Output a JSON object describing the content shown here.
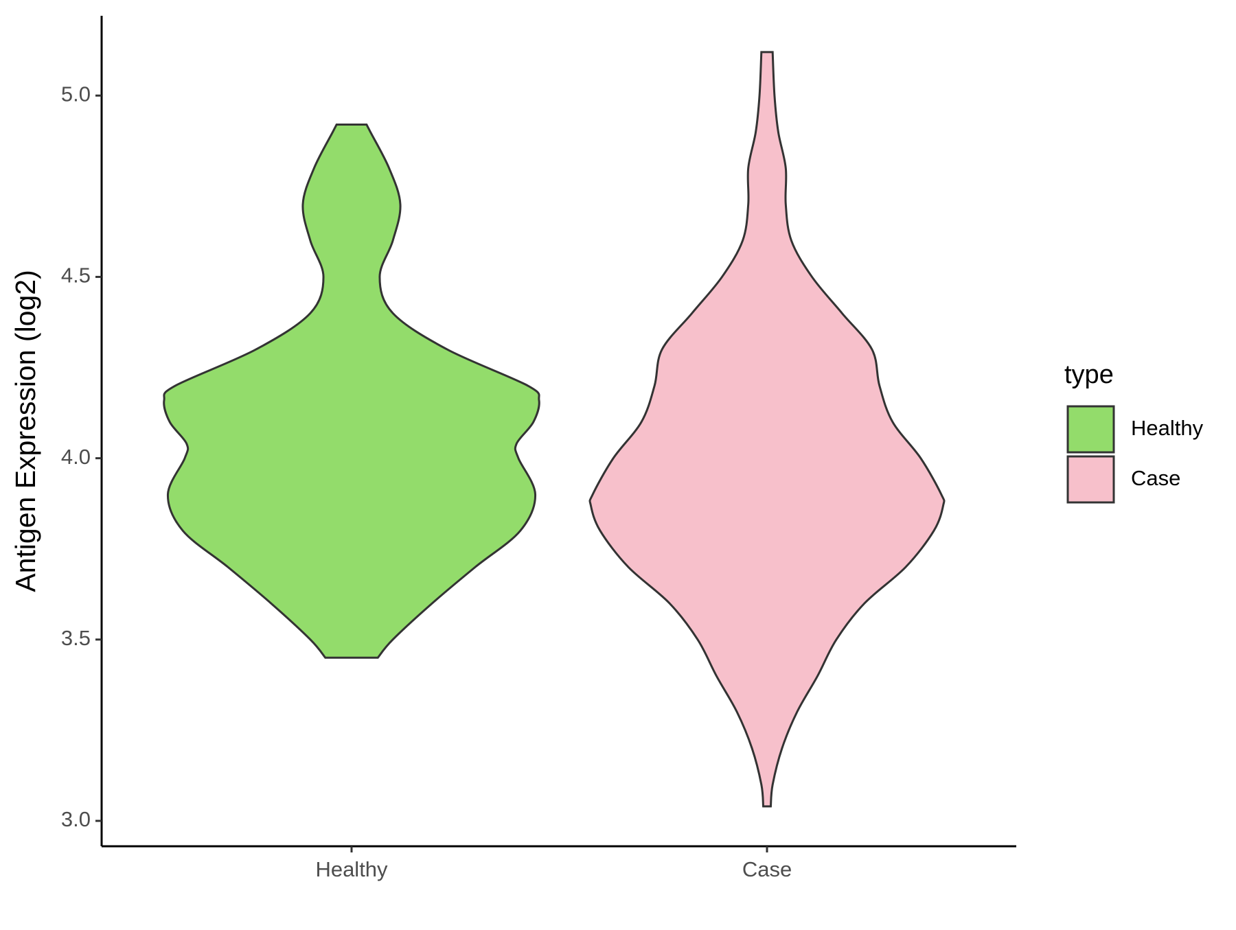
{
  "chart_data": {
    "type": "violin",
    "y_label": "Antigen Expression (log2)",
    "categories": [
      "Healthy",
      "Case"
    ],
    "legend_title": "type",
    "legend_position": "right",
    "ylim": [
      2.93,
      5.22
    ],
    "yticks": [
      {
        "value": 3,
        "label": "3.0"
      },
      3.5,
      {
        "value": 4,
        "label": "4.0"
      },
      4.5,
      {
        "value": 5,
        "label": "5.0"
      }
    ],
    "series": [
      {
        "name": "Healthy",
        "color": "#93dc6b",
        "y": [
          3.45,
          3.5,
          3.6,
          3.7,
          3.8,
          3.9,
          4.0,
          4.04,
          4.1,
          4.16,
          4.2,
          4.3,
          4.4,
          4.5,
          4.6,
          4.7,
          4.8,
          4.9,
          4.92
        ],
        "width": [
          0.14,
          0.22,
          0.43,
          0.66,
          0.9,
          0.98,
          0.89,
          0.88,
          0.97,
          1.0,
          0.94,
          0.51,
          0.22,
          0.15,
          0.22,
          0.26,
          0.2,
          0.1,
          0.08
        ]
      },
      {
        "name": "Case",
        "color": "#f7c0cb",
        "y": [
          3.04,
          3.1,
          3.2,
          3.3,
          3.4,
          3.5,
          3.6,
          3.7,
          3.8,
          3.87,
          3.9,
          4.0,
          4.1,
          4.2,
          4.3,
          4.4,
          4.5,
          4.6,
          4.7,
          4.8,
          4.9,
          5.0,
          5.12
        ],
        "width": [
          0.02,
          0.03,
          0.08,
          0.16,
          0.27,
          0.37,
          0.52,
          0.74,
          0.89,
          0.94,
          0.93,
          0.82,
          0.67,
          0.6,
          0.56,
          0.4,
          0.24,
          0.13,
          0.1,
          0.1,
          0.06,
          0.04,
          0.03
        ]
      }
    ]
  }
}
